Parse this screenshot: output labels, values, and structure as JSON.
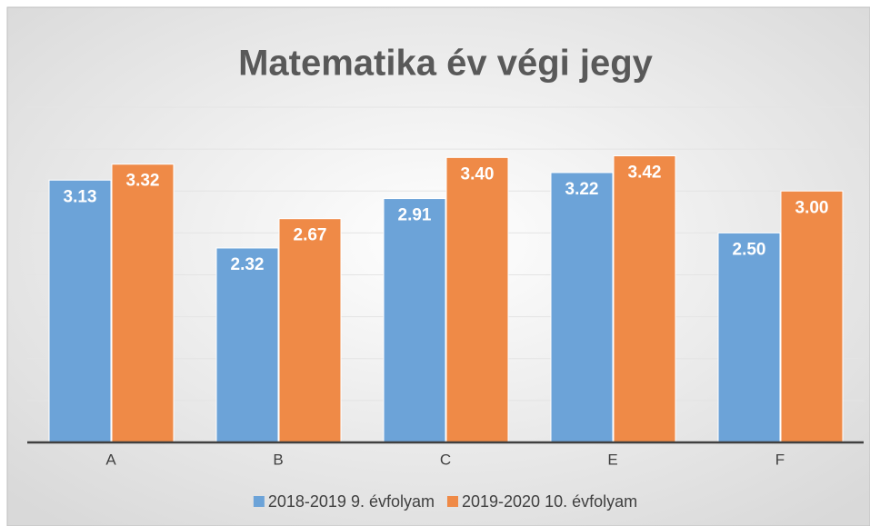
{
  "chart_data": {
    "type": "bar",
    "title": "Matematika év végi jegy",
    "categories": [
      "A",
      "B",
      "C",
      "E",
      "F"
    ],
    "series": [
      {
        "name": "2018-2019 9. évfolyam",
        "color": "#6ca3d8",
        "values": [
          3.13,
          2.32,
          2.91,
          3.22,
          2.5
        ],
        "value_labels": [
          "3.13",
          "2.32",
          "2.91",
          "3.22",
          "2.50"
        ]
      },
      {
        "name": "2019-2020 10. évfolyam",
        "color": "#ef8a47",
        "values": [
          3.32,
          2.67,
          3.4,
          3.42,
          3
        ],
        "value_labels": [
          "3.32",
          "2.67",
          "3.40",
          "3.42",
          "3.00"
        ]
      }
    ],
    "ylim": [
      0,
      4
    ],
    "yticks": [
      0,
      0.5,
      1,
      1.5,
      2,
      2.5,
      3,
      3.5,
      4
    ],
    "grid": true,
    "legend": "bottom"
  }
}
